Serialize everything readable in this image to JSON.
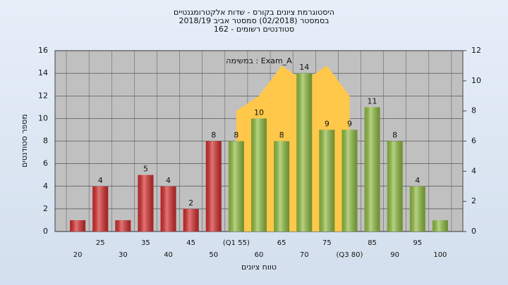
{
  "chart_data": {
    "type": "bar",
    "title": [
      "היסטוגרמת ציונים בקורס - שדות אלקטרומגנטיים",
      "בסמסטר (02/2018) סמסטר אביב 2018/19",
      "סטודנטים רשומים - 162"
    ],
    "annotation": "במשימה : Exam_A",
    "x_label": "טווח ציונים",
    "y_label": "מספר סטודנטים",
    "categories": [
      "20",
      "25",
      "30",
      "35",
      "40",
      "45",
      "50",
      "(Q1 55)",
      "60",
      "65",
      "70",
      "75",
      "(Q3 80)",
      "85",
      "90",
      "95",
      "100"
    ],
    "values": [
      1,
      4,
      1,
      5,
      4,
      2,
      8,
      8,
      10,
      8,
      14,
      9,
      9,
      11,
      8,
      4,
      1
    ],
    "value_labels": [
      null,
      "4",
      null,
      "5",
      "4",
      "2",
      "8",
      "8",
      "10",
      "8",
      "14",
      "9",
      "9",
      "11",
      "8",
      "4",
      null
    ],
    "colors": [
      "#d42a2a",
      "#d42a2a",
      "#d42a2a",
      "#d42a2a",
      "#d42a2a",
      "#d42a2a",
      "#d42a2a",
      "#8fbc3f",
      "#8fbc3f",
      "#8fbc3f",
      "#8fbc3f",
      "#8fbc3f",
      "#8fbc3f",
      "#8fbc3f",
      "#8fbc3f",
      "#8fbc3f",
      "#8fbc3f"
    ],
    "area": {
      "axis": "y2",
      "color": "#ffc84a",
      "values": [
        null,
        null,
        null,
        null,
        null,
        null,
        null,
        8,
        9,
        11,
        10,
        11,
        9,
        null,
        null,
        null,
        null
      ]
    },
    "ylim": [
      0,
      16
    ],
    "yticks": [
      0,
      2,
      4,
      6,
      8,
      10,
      12,
      14,
      16
    ],
    "y2lim": [
      0,
      12
    ],
    "y2ticks": [
      0,
      2,
      4,
      6,
      8,
      10,
      12
    ],
    "grid": true
  }
}
